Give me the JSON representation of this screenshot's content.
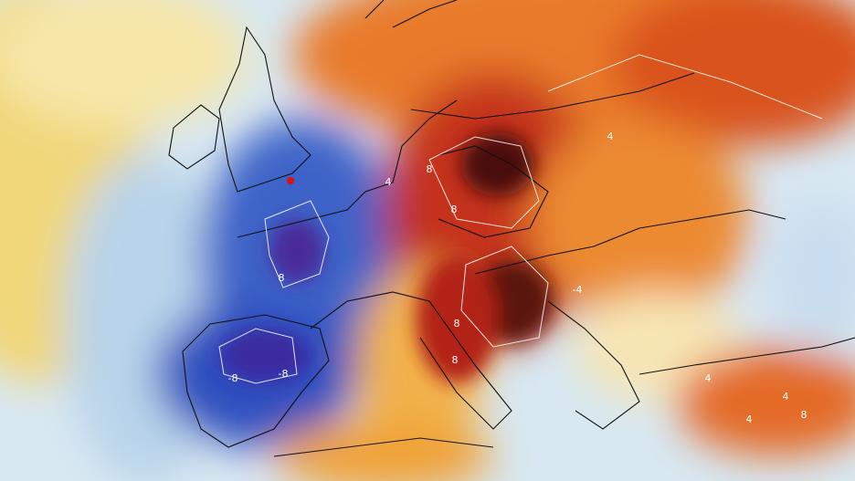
{
  "contour_labels": [
    "8",
    "4",
    "8",
    "8",
    "-8",
    "-8",
    "8",
    "8",
    "4",
    "4",
    "-4",
    "4",
    "8",
    "4"
  ]
}
